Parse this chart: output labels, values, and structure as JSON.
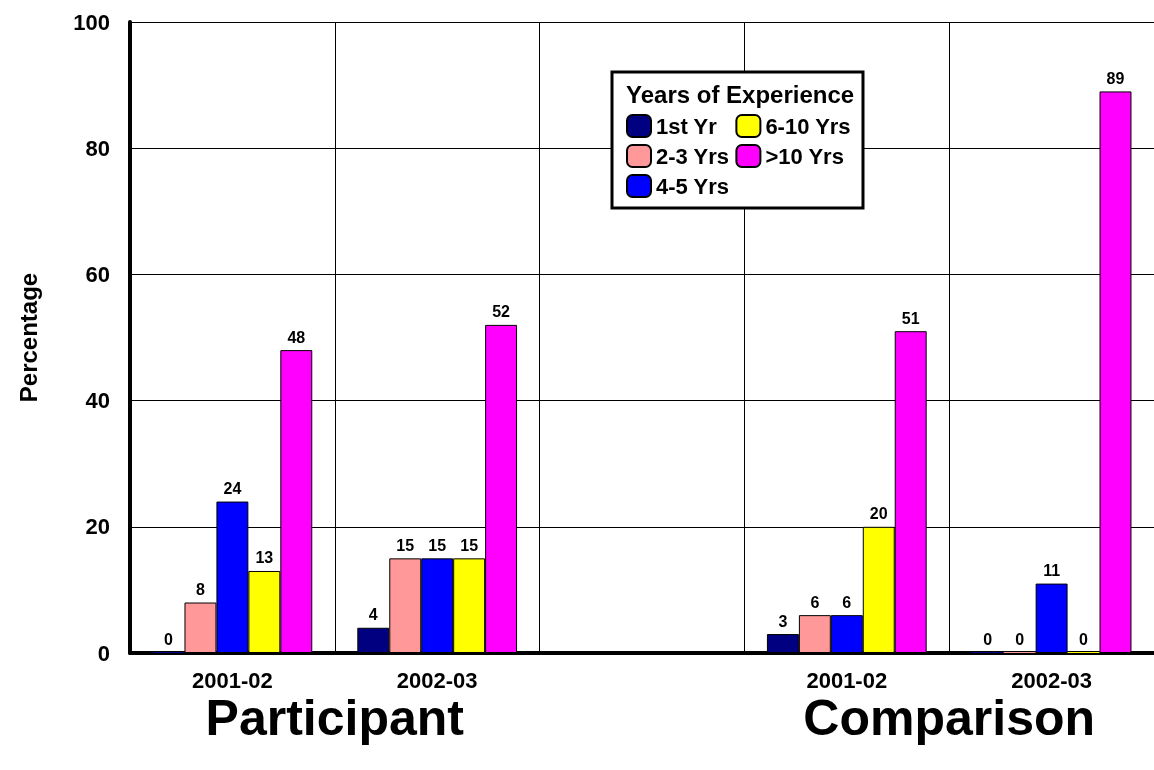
{
  "chart_data": {
    "type": "bar",
    "ylabel": "Percentage",
    "legend_title": "Years of Experience",
    "categories": [
      "2001-02",
      "2002-03",
      null,
      "2001-02",
      "2002-03"
    ],
    "series": [
      {
        "name": "1st Yr",
        "color": "#000080",
        "values": [
          0,
          4,
          null,
          3,
          0
        ]
      },
      {
        "name": "2-3 Yrs",
        "color": "#ff9999",
        "values": [
          8,
          15,
          null,
          6,
          0
        ]
      },
      {
        "name": "4-5 Yrs",
        "color": "#0000ff",
        "values": [
          24,
          15,
          null,
          6,
          11
        ]
      },
      {
        "name": "6-10 Yrs",
        "color": "#ffff00",
        "values": [
          13,
          15,
          null,
          20,
          0
        ]
      },
      {
        "name": ">10 Yrs",
        "color": "#ff00ff",
        "values": [
          48,
          52,
          null,
          51,
          89
        ]
      }
    ],
    "ylim": [
      0,
      100
    ],
    "yticks": [
      0,
      20,
      40,
      60,
      80,
      100
    ],
    "annotations": [
      "Participant",
      "Comparison"
    ],
    "data_labels": true,
    "grid": true,
    "legend": "top right"
  }
}
